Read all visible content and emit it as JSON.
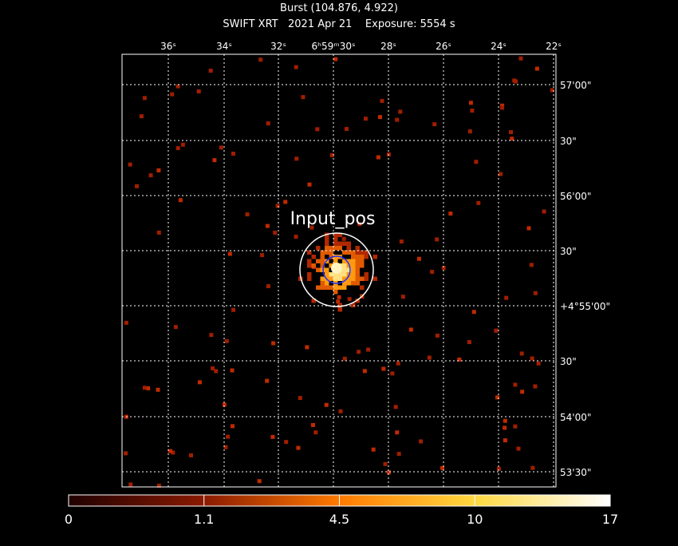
{
  "header": {
    "title": "Burst (104.876, 4.922)",
    "subtitle": "SWIFT XRT   2021 Apr 21    Exposure: 5554 s"
  },
  "top_axis": [
    "36ˢ",
    "34ˢ",
    "32ˢ",
    "6ʰ59ᵐ30ˢ",
    "28ˢ",
    "26ˢ",
    "24ˢ",
    "22ˢ"
  ],
  "right_axis": [
    "57'00\"",
    "30\"",
    "56'00\"",
    "30\"",
    "+4°55'00\"",
    "30\"",
    "54'00\"",
    "53'30\""
  ],
  "annotation": "Input_pos",
  "colorbar": [
    "0",
    "1.1",
    "4.5",
    "10",
    "17"
  ]
}
